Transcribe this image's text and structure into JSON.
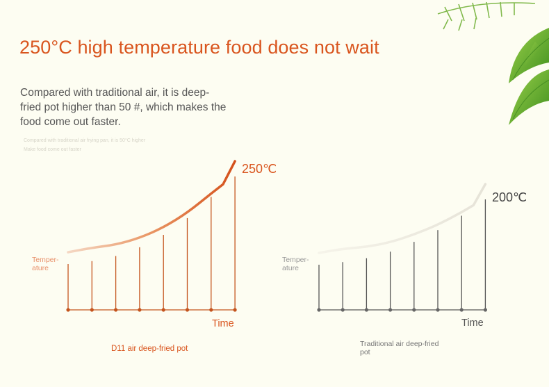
{
  "headline": "250°C high temperature food does not wait",
  "description": "Compared with traditional air, it is deep-fried pot higher than 50 #, which makes the food come out faster.",
  "faint_caption": {
    "line1": "Compared with traditional air frying pan, it is 50°C higher",
    "line2": "Make food come out faster"
  },
  "colors": {
    "accent": "#d9551e",
    "background": "#fdfdf2",
    "text": "#555555",
    "d11_bar": "#c4541d",
    "traditional_bar": "#555555",
    "leaf_green": "#5aa629"
  },
  "chart_data": [
    {
      "type": "line",
      "name": "d11",
      "title": "",
      "caption": "D11 air deep-fried pot",
      "ylabel": "Temper-ature",
      "ylabel_lines": [
        "Temper-",
        "ature"
      ],
      "xlabel": "Time",
      "peak_label": "250℃",
      "peak_value": 250,
      "series": [
        {
          "name": "",
          "x": [
            1,
            2,
            3,
            4,
            5,
            6,
            7,
            8
          ],
          "values": [
            130,
            134,
            141,
            153,
            170,
            193,
            222,
            250
          ]
        }
      ],
      "ylim": [
        0,
        250
      ],
      "grid": false
    },
    {
      "type": "line",
      "name": "traditional",
      "title": "",
      "caption": "Traditional air deep-fried pot",
      "caption_lines": [
        "Traditional air deep-fried",
        "pot"
      ],
      "ylabel": "Temper-ature",
      "ylabel_lines": [
        "Temper-",
        "ature"
      ],
      "xlabel": "Time",
      "peak_label": "200℃",
      "peak_value": 200,
      "series": [
        {
          "name": "",
          "x": [
            1,
            2,
            3,
            4,
            5,
            6,
            7,
            8
          ],
          "values": [
            100,
            104,
            110,
            120,
            135,
            153,
            175,
            200
          ]
        }
      ],
      "ylim": [
        0,
        250
      ],
      "grid": false
    }
  ]
}
